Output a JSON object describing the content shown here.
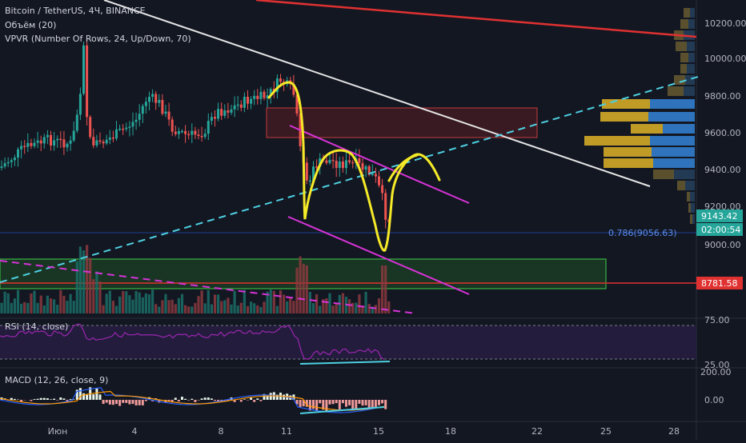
{
  "legend": {
    "symbol": "Bitcoin / TetherUS, 4Ч, BINANCE",
    "volume": "Объём (20)",
    "vpvr": "VPVR (Number Of Rows, 24, Up/Down, 70)"
  },
  "price_axis": {
    "ticks": [
      "10200.00",
      "10000.00",
      "9800.00",
      "9600.00",
      "9400.00",
      "9200.00",
      "9000.00"
    ],
    "tick_values": [
      10200,
      10000,
      9800,
      9600,
      9400,
      9200,
      9000
    ]
  },
  "badges": {
    "last_price": "9143.42",
    "countdown": "02:00:54",
    "level": "8781.58"
  },
  "fib_label": "0.786(9056.63)",
  "rsi": {
    "label": "RSI (14, close)",
    "ticks": [
      "75.00",
      "25.00"
    ]
  },
  "macd": {
    "label": "MACD (12, 26, close, 9)",
    "ticks": [
      "200.00",
      "0.00"
    ]
  },
  "time_axis": [
    "Июн",
    "4",
    "8",
    "11",
    "15",
    "18",
    "22",
    "25",
    "28"
  ],
  "colors": {
    "background": "#131722",
    "up": "#26a69a",
    "down": "#ef5350",
    "trendline_red": "#e03131",
    "trendline_white": "#e6e6e6",
    "support_dashed": "#4dd0e1",
    "channel": "#d633d6",
    "drawing_yellow": "#f5ea28",
    "zone_red": "#ff4a4a",
    "zone_green": "#3fd04a",
    "rsi_line": "#9c27b0",
    "macd_line": "#2962ff",
    "signal_line": "#ff9800"
  },
  "chart_data": {
    "type": "candlestick",
    "title": "Bitcoin / TetherUS, 4Ч, BINANCE",
    "ylim": [
      8900,
      10300
    ],
    "price_levels": {
      "last": 9143.42,
      "level": 8781.58,
      "fib_0_786": 9056.63
    },
    "resistance_zone": [
      9580,
      9730
    ],
    "support_zone": [
      8770,
      8920
    ],
    "x_ticks": [
      "Июн",
      "4",
      "8",
      "11",
      "15",
      "18",
      "22",
      "25",
      "28"
    ],
    "rsi_levels": [
      75,
      25
    ],
    "macd_levels": [
      200,
      0
    ]
  }
}
